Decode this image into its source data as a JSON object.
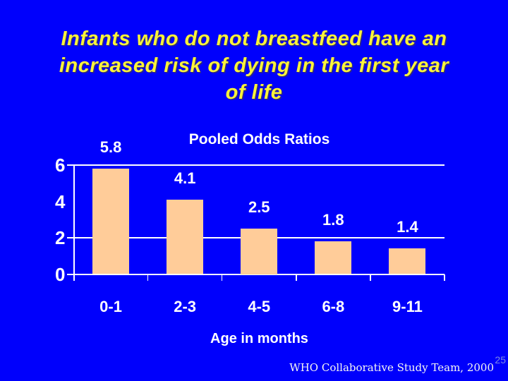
{
  "slide": {
    "background_color": "#0000FC",
    "title": {
      "text": "Infants who do not breastfeed have an increased risk of dying in the first year of life",
      "lines": [
        "Infants who do not breastfeed have an",
        "increased risk of dying in the first year",
        "of life"
      ],
      "color": "#FAF339"
    },
    "credit": "WHO Collaborative Study Team, 2000",
    "page_number": "25"
  },
  "chart_data": {
    "type": "bar",
    "title": "Pooled Odds Ratios",
    "categories": [
      "0-1",
      "2-3",
      "4-5",
      "6-8",
      "9-11"
    ],
    "values": [
      5.8,
      4.1,
      2.5,
      1.8,
      1.4
    ],
    "value_labels": [
      "5.8",
      "4.1",
      "2.5",
      "1.8",
      "1.4"
    ],
    "xlabel": "Age in months",
    "ylabel": "",
    "ylim": [
      0,
      6
    ],
    "yticks": [
      0,
      2,
      4,
      6
    ],
    "gridlines_at": [
      2,
      6
    ],
    "grid": "horizontal-partial",
    "legend": "none",
    "bar_color": "#FFCC99",
    "axis_color": "#FFFFFF",
    "text_color": "#FFFFFF"
  }
}
